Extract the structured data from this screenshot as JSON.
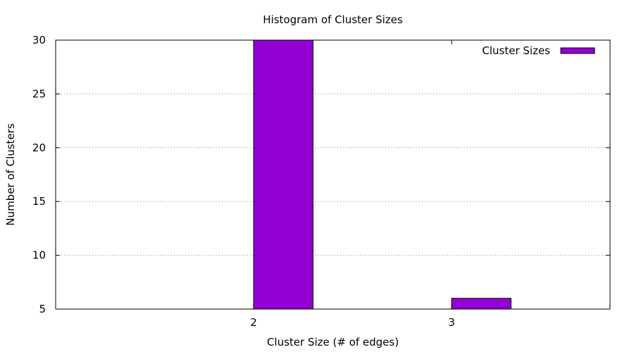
{
  "chart_data": {
    "type": "bar",
    "title": "Histogram of Cluster Sizes",
    "xlabel": "Cluster Size (# of edges)",
    "ylabel": "Number of Clusters",
    "categories": [
      "2",
      "3"
    ],
    "series": [
      {
        "name": "Cluster Sizes",
        "values": [
          30,
          6
        ],
        "color": "#9400d3"
      }
    ],
    "ylim": [
      5,
      30
    ],
    "y_ticks": [
      "5",
      "10",
      "15",
      "20",
      "25",
      "30"
    ],
    "grid": "horizontal-dotted",
    "legend_position": "top-right"
  }
}
